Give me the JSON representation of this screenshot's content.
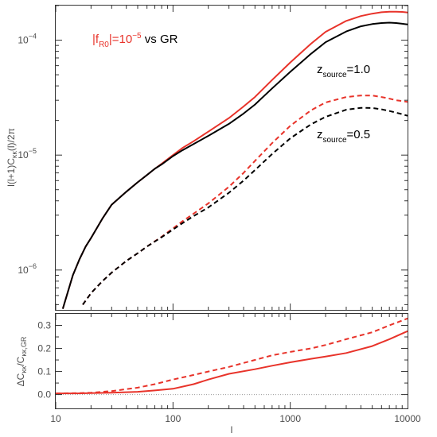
{
  "chart_data": [
    {
      "type": "line",
      "xscale": "log",
      "yscale": "log",
      "xlim": [
        10,
        10000
      ],
      "ylim": [
        4.5e-07,
        0.0002
      ],
      "xlabel": "l",
      "ylabel": "l(l+1)C_κκ(l)/2π",
      "ylabel_parts": {
        "main1": "l(l+1)C",
        "sub": "κκ",
        "main2": "(l)/2π"
      },
      "yticks": [
        {
          "value": 1e-06,
          "base": "10",
          "exp": "−6"
        },
        {
          "value": 1e-05,
          "base": "10",
          "exp": "−5"
        },
        {
          "value": 0.0001,
          "base": "10",
          "exp": "−4"
        }
      ],
      "legend": {
        "model": {
          "prefix": "|f",
          "sub": "R0",
          "mid": "|=10",
          "sup": "−5",
          "color": "#e8332a"
        },
        "vs": " vs GR"
      },
      "annotations": [
        {
          "pre": "z",
          "sub": "source",
          "post": "=1.0"
        },
        {
          "pre": "z",
          "sub": "source",
          "post": "=0.5"
        }
      ],
      "series": [
        {
          "style": "solid",
          "color": "#e8332a",
          "x": [
            11.5,
            14,
            16,
            18,
            20,
            25,
            30,
            40,
            50,
            60,
            70,
            80,
            100,
            120,
            150,
            200,
            300,
            400,
            500,
            700,
            1000,
            1500,
            2000,
            3000,
            4000,
            5000,
            6000,
            7000,
            8000,
            9000,
            10000
          ],
          "y": [
            4.6e-07,
            9e-07,
            1.25e-06,
            1.6e-06,
            1.9e-06,
            2.8e-06,
            3.7e-06,
            4.8e-06,
            5.8e-06,
            6.7e-06,
            7.6e-06,
            8.4e-06,
            1e-05,
            1.15e-05,
            1.32e-05,
            1.6e-05,
            2.1e-05,
            2.65e-05,
            3.2e-05,
            4.5e-05,
            6.4e-05,
            9.3e-05,
            0.000118,
            0.000147,
            0.000162,
            0.00017,
            0.000175,
            0.000177,
            0.000177,
            0.000176,
            0.000174
          ]
        },
        {
          "style": "solid",
          "color": "#000000",
          "x": [
            11.5,
            14,
            16,
            18,
            20,
            25,
            30,
            40,
            50,
            60,
            70,
            80,
            100,
            120,
            150,
            200,
            300,
            400,
            500,
            700,
            1000,
            1500,
            2000,
            3000,
            4000,
            5000,
            6000,
            7000,
            8000,
            9000,
            10000
          ],
          "y": [
            4.6e-07,
            9e-07,
            1.25e-06,
            1.6e-06,
            1.9e-06,
            2.8e-06,
            3.7e-06,
            4.8e-06,
            5.8e-06,
            6.7e-06,
            7.6e-06,
            8.3e-06,
            9.8e-06,
            1.1e-05,
            1.25e-05,
            1.47e-05,
            1.87e-05,
            2.3e-05,
            2.75e-05,
            3.8e-05,
            5.3e-05,
            7.6e-05,
            9.6e-05,
            0.000119,
            0.000132,
            0.000138,
            0.000141,
            0.000142,
            0.000141,
            0.000139,
            0.000137
          ]
        },
        {
          "style": "dashed",
          "color": "#e8332a",
          "x": [
            17,
            20,
            25,
            30,
            40,
            50,
            60,
            80,
            100,
            120,
            150,
            200,
            300,
            400,
            500,
            700,
            1000,
            1500,
            2000,
            3000,
            4000,
            5000,
            6000,
            7000,
            8000,
            9000,
            10000
          ],
          "y": [
            5e-07,
            6.3e-07,
            8e-07,
            9.5e-07,
            1.2e-06,
            1.4e-06,
            1.6e-06,
            1.95e-06,
            2.3e-06,
            2.65e-06,
            3.1e-06,
            3.8e-06,
            5.3e-06,
            7e-06,
            8.9e-06,
            1.27e-05,
            1.8e-05,
            2.45e-05,
            2.87e-05,
            3.2e-05,
            3.3e-05,
            3.3e-05,
            3.2e-05,
            3.1e-05,
            3e-05,
            2.95e-05,
            2.9e-05
          ]
        },
        {
          "style": "dashed",
          "color": "#000000",
          "x": [
            17,
            20,
            25,
            30,
            40,
            50,
            60,
            80,
            100,
            120,
            150,
            200,
            300,
            400,
            500,
            700,
            1000,
            1500,
            2000,
            3000,
            4000,
            5000,
            6000,
            7000,
            8000,
            9000,
            10000
          ],
          "y": [
            5e-07,
            6.3e-07,
            8e-07,
            9.5e-07,
            1.2e-06,
            1.4e-06,
            1.6e-06,
            1.93e-06,
            2.25e-06,
            2.55e-06,
            2.95e-06,
            3.5e-06,
            4.7e-06,
            6e-06,
            7.4e-06,
            1.02e-05,
            1.4e-05,
            1.85e-05,
            2.15e-05,
            2.48e-05,
            2.58e-05,
            2.57e-05,
            2.5e-05,
            2.42e-05,
            2.34e-05,
            2.27e-05,
            2.2e-05
          ]
        }
      ]
    },
    {
      "type": "line",
      "xscale": "log",
      "xlim": [
        10,
        10000
      ],
      "ylim": [
        -0.06,
        0.35
      ],
      "xlabel": "l",
      "ylabel": "ΔC_κκ/C_κκ,GR",
      "ylabel_parts": {
        "main1": "ΔC",
        "sub1": "κκ",
        "main2": "/C",
        "sub2": "κκ,GR"
      },
      "xticks": [
        {
          "value": 10,
          "label": "10"
        },
        {
          "value": 100,
          "label": "100"
        },
        {
          "value": 1000,
          "label": "1000"
        },
        {
          "value": 10000,
          "label": "10000"
        }
      ],
      "yticks": [
        {
          "value": 0.0,
          "label": "0.0"
        },
        {
          "value": 0.1,
          "label": "0.1"
        },
        {
          "value": 0.2,
          "label": "0.2"
        },
        {
          "value": 0.3,
          "label": "0.3"
        }
      ],
      "reference_line": {
        "y": 0.0,
        "style": "dotted",
        "color": "#9a9a9a"
      },
      "series": [
        {
          "style": "solid",
          "color": "#e8332a",
          "x": [
            10,
            15,
            20,
            30,
            50,
            70,
            100,
            150,
            200,
            300,
            500,
            700,
            1000,
            1500,
            2000,
            3000,
            5000,
            7000,
            10000
          ],
          "y": [
            0.005,
            0.005,
            0.006,
            0.008,
            0.012,
            0.018,
            0.025,
            0.045,
            0.065,
            0.09,
            0.11,
            0.125,
            0.14,
            0.155,
            0.165,
            0.18,
            0.21,
            0.24,
            0.275
          ]
        },
        {
          "style": "dashed",
          "color": "#e8332a",
          "x": [
            10,
            15,
            20,
            30,
            50,
            70,
            100,
            150,
            200,
            300,
            500,
            700,
            1000,
            1500,
            2000,
            3000,
            5000,
            7000,
            10000
          ],
          "y": [
            0.005,
            0.006,
            0.008,
            0.015,
            0.03,
            0.045,
            0.065,
            0.085,
            0.1,
            0.12,
            0.15,
            0.17,
            0.185,
            0.2,
            0.215,
            0.24,
            0.27,
            0.3,
            0.33
          ]
        }
      ]
    }
  ]
}
